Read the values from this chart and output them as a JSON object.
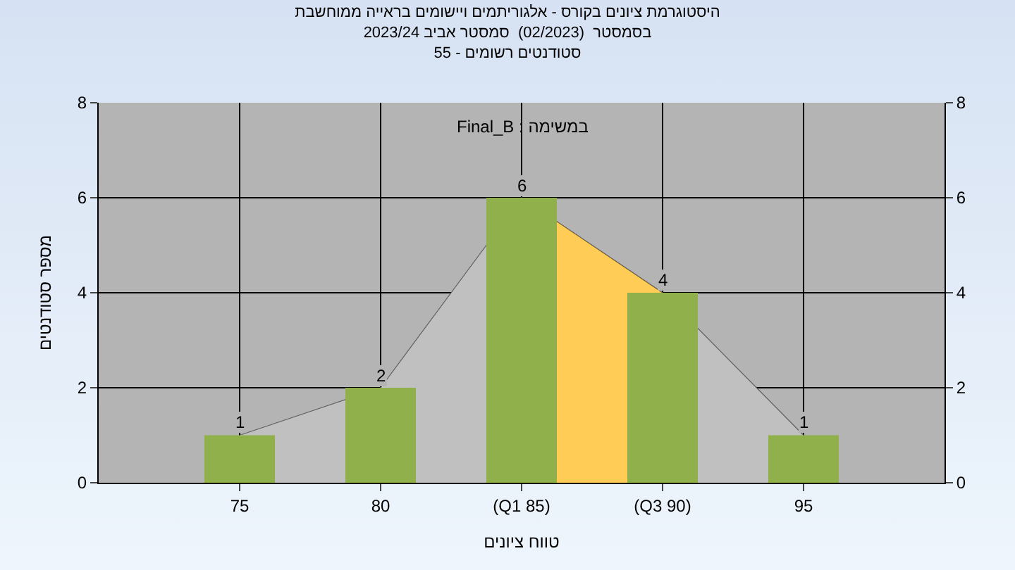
{
  "chart_data": {
    "type": "bar",
    "title": "היסטוגרמת ציונים בקורס - אלגוריתמים ויישומים בראייה ממוחשבת",
    "subtitle": "בסמסטר  (02/2023)  סמסטר אביב 2023/24\nסטודנטים רשומים - 55",
    "xlabel": "טווח ציונים",
    "ylabel": "מספר סטודנטים",
    "annotations": [
      "במשימה : Final_B"
    ],
    "categories": [
      "75",
      "80",
      "(Q1 85)",
      "(Q3 90)",
      "95"
    ],
    "series": [
      {
        "type": "area",
        "color": "#c0c0c0",
        "values": [
          1,
          2,
          6,
          4,
          1
        ]
      },
      {
        "type": "area",
        "color": "#ffcc55",
        "values": [
          null,
          null,
          6,
          4,
          null
        ]
      },
      {
        "axis": "y2",
        "color": "#8fb04a",
        "values": [
          1,
          2,
          6,
          4,
          1
        ],
        "value_labels": [
          "1",
          "2",
          "6",
          "4",
          "1"
        ]
      }
    ],
    "ylim": [
      0,
      8
    ],
    "yticks": [
      0,
      2,
      4,
      6,
      8
    ],
    "y2lim": [
      0,
      8
    ],
    "y2ticks": [
      0,
      2,
      4,
      6,
      8
    ],
    "grid": true,
    "legend": false
  }
}
